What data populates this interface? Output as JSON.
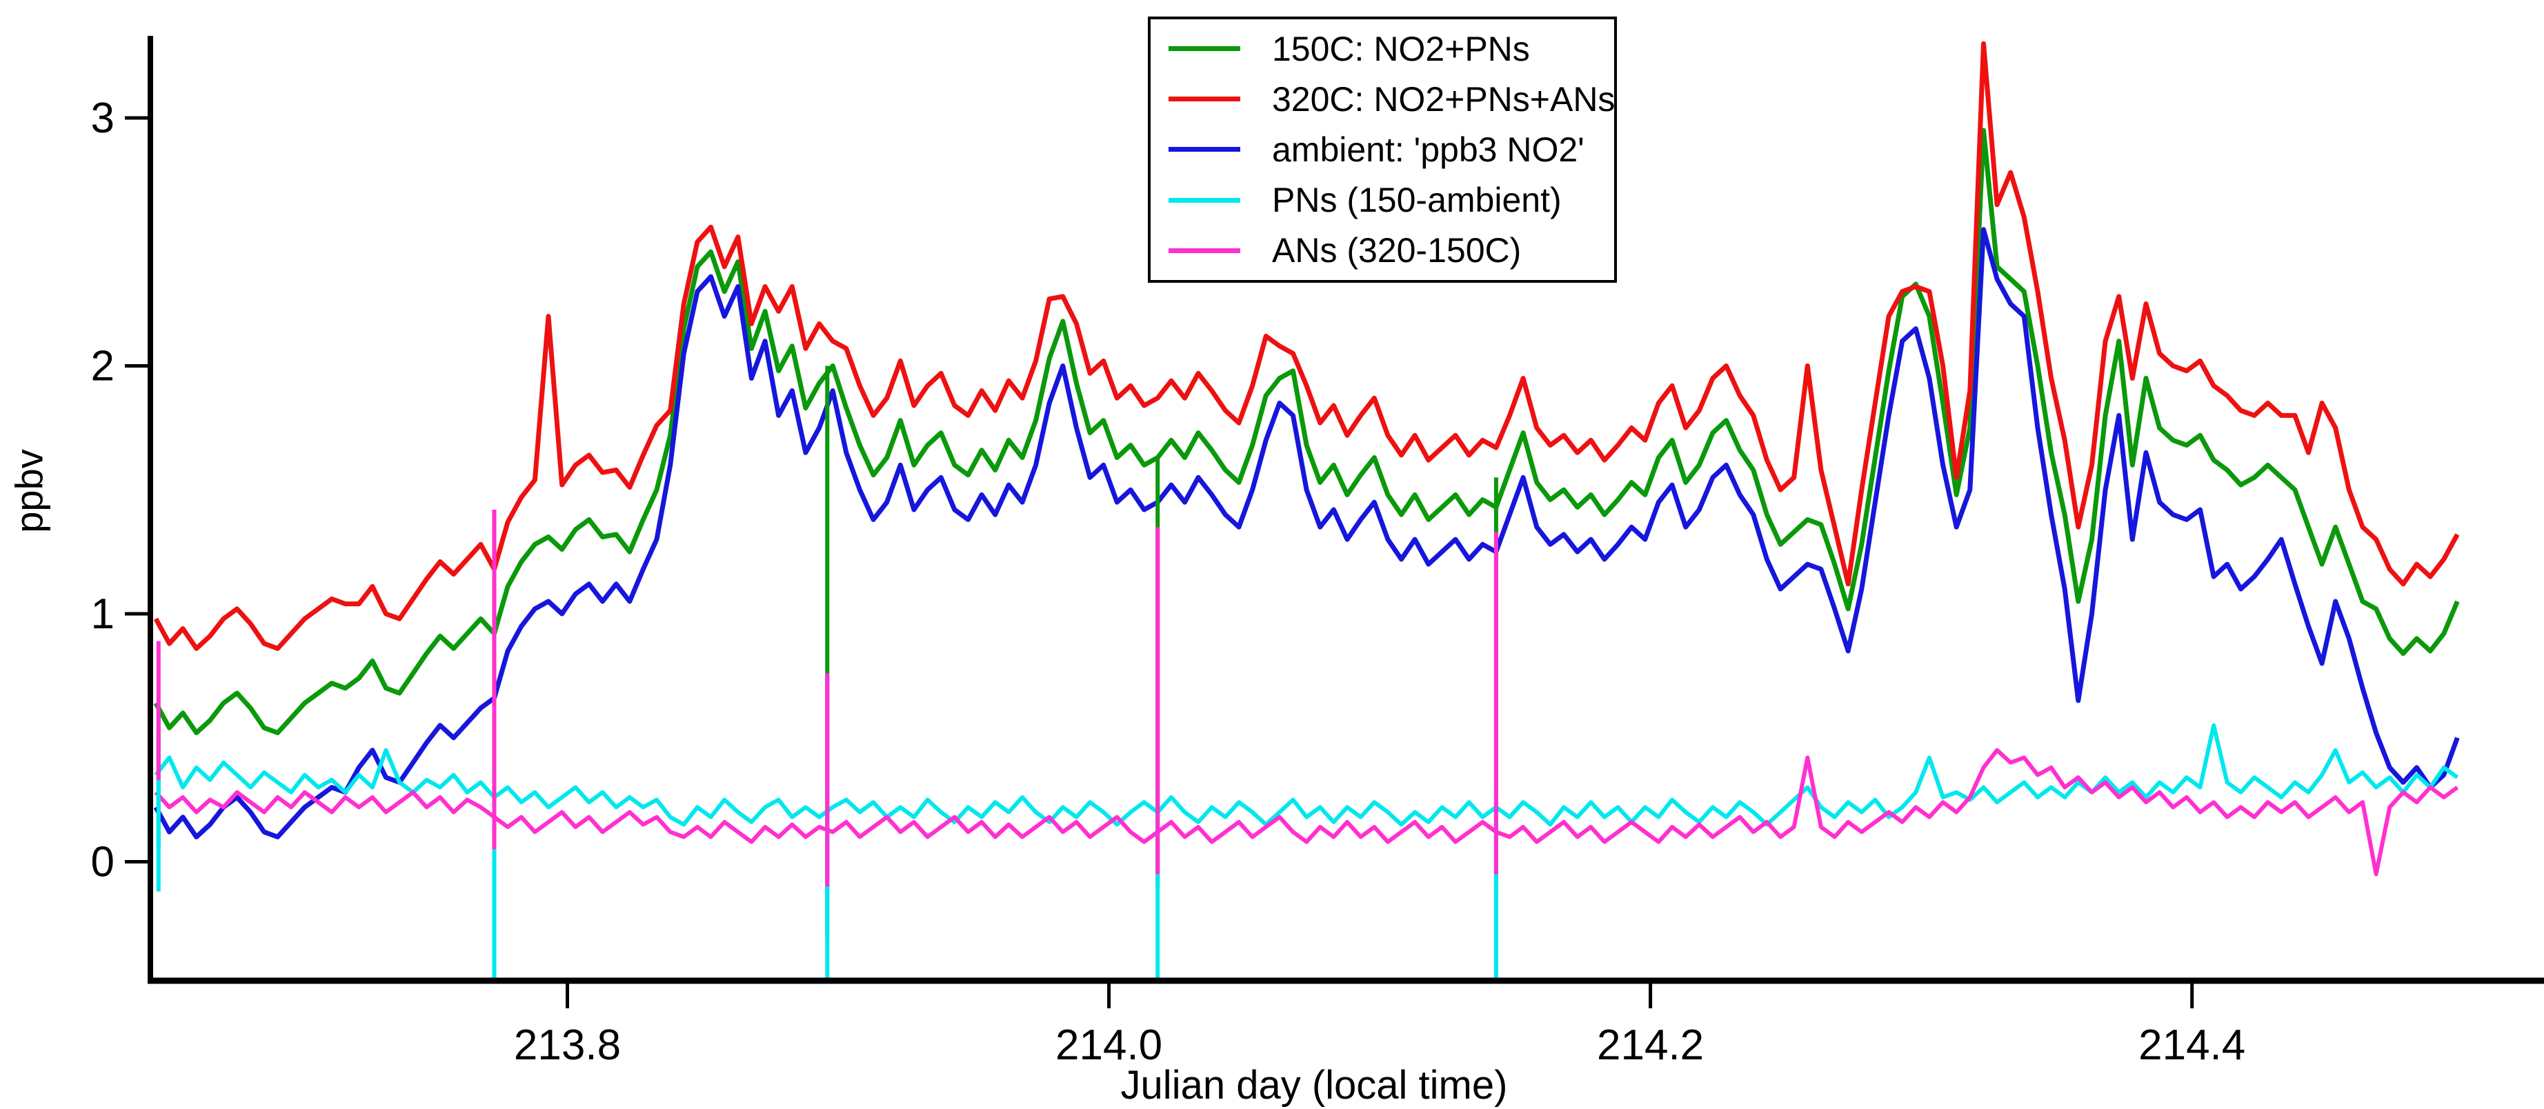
{
  "figure_type": "time-series line plot",
  "axes": {
    "xlabel": "Julian day (local time)",
    "ylabel": "ppbv",
    "xtick_labels": [
      "213.8",
      "214.0",
      "214.2",
      "214.4"
    ],
    "ytick_labels": [
      "0",
      "1",
      "2",
      "3"
    ]
  },
  "legend": {
    "entries": [
      {
        "label": "150C: NO2+PNs",
        "color": "#0a990a"
      },
      {
        "label": "320C: NO2+PNs+ANs",
        "color": "#ee1111"
      },
      {
        "label": "ambient: 'ppb3 NO2'",
        "color": "#1616dd"
      },
      {
        "label": "PNs (150-ambient)",
        "color": "#00e8ee"
      },
      {
        "label": "ANs (320-150C)",
        "color": "#ff30cf"
      }
    ]
  },
  "chart_data": {
    "type": "line",
    "title": "",
    "xlabel": "Julian day (local time)",
    "ylabel": "ppbv",
    "xlim": [
      213.646,
      214.53
    ],
    "ylim": [
      -0.48,
      3.32
    ],
    "xticks": [
      213.8,
      214.0,
      214.2,
      214.4
    ],
    "yticks": [
      0,
      1,
      2,
      3
    ],
    "grid": false,
    "legend_position": "top-center-inside",
    "x_start": 213.648,
    "x_step": 0.005,
    "series": [
      {
        "id": "c150",
        "name": "150C: NO2+PNs",
        "color": "#0a990a",
        "values": [
          0.64,
          0.54,
          0.6,
          0.52,
          0.57,
          0.64,
          0.68,
          0.62,
          0.54,
          0.52,
          0.58,
          0.64,
          0.68,
          0.72,
          0.7,
          0.74,
          0.81,
          0.7,
          0.68,
          0.76,
          0.84,
          0.91,
          0.86,
          0.92,
          0.98,
          0.92,
          1.11,
          1.21,
          1.28,
          1.31,
          1.26,
          1.34,
          1.38,
          1.31,
          1.32,
          1.25,
          1.38,
          1.5,
          1.72,
          2.15,
          2.4,
          2.46,
          2.3,
          2.42,
          2.07,
          2.22,
          1.98,
          2.08,
          1.83,
          1.93,
          2.0,
          1.83,
          1.68,
          1.56,
          1.63,
          1.78,
          1.6,
          1.68,
          1.73,
          1.6,
          1.56,
          1.66,
          1.58,
          1.7,
          1.63,
          1.78,
          2.03,
          2.18,
          1.93,
          1.73,
          1.78,
          1.63,
          1.68,
          1.6,
          1.63,
          1.7,
          1.63,
          1.73,
          1.66,
          1.58,
          1.53,
          1.68,
          1.88,
          1.95,
          1.98,
          1.68,
          1.53,
          1.6,
          1.48,
          1.56,
          1.63,
          1.48,
          1.4,
          1.48,
          1.38,
          1.43,
          1.48,
          1.4,
          1.46,
          1.43,
          1.58,
          1.73,
          1.53,
          1.46,
          1.5,
          1.43,
          1.48,
          1.4,
          1.46,
          1.53,
          1.48,
          1.63,
          1.7,
          1.53,
          1.6,
          1.73,
          1.78,
          1.66,
          1.58,
          1.4,
          1.28,
          1.33,
          1.38,
          1.36,
          1.2,
          1.02,
          1.28,
          1.63,
          1.98,
          2.28,
          2.33,
          2.2,
          1.85,
          1.48,
          1.75,
          2.95,
          2.4,
          2.35,
          2.3,
          2.0,
          1.65,
          1.4,
          1.05,
          1.3,
          1.8,
          2.1,
          1.6,
          1.95,
          1.75,
          1.7,
          1.68,
          1.72,
          1.62,
          1.58,
          1.52,
          1.55,
          1.6,
          1.55,
          1.5,
          1.35,
          1.2,
          1.35,
          1.2,
          1.05,
          1.02,
          0.9,
          0.84,
          0.9,
          0.85,
          0.92,
          1.05
        ]
      },
      {
        "id": "c320",
        "name": "320C: NO2+PNs+ANs",
        "color": "#ee1111",
        "values": [
          0.98,
          0.88,
          0.94,
          0.86,
          0.91,
          0.98,
          1.02,
          0.96,
          0.88,
          0.86,
          0.92,
          0.98,
          1.02,
          1.06,
          1.04,
          1.04,
          1.11,
          1.0,
          0.98,
          1.06,
          1.14,
          1.21,
          1.16,
          1.22,
          1.28,
          1.18,
          1.37,
          1.47,
          1.54,
          2.2,
          1.52,
          1.6,
          1.64,
          1.57,
          1.58,
          1.51,
          1.64,
          1.76,
          1.82,
          2.25,
          2.5,
          2.56,
          2.4,
          2.52,
          2.17,
          2.32,
          2.22,
          2.32,
          2.07,
          2.17,
          2.1,
          2.07,
          1.92,
          1.8,
          1.87,
          2.02,
          1.84,
          1.92,
          1.97,
          1.84,
          1.8,
          1.9,
          1.82,
          1.94,
          1.87,
          2.02,
          2.27,
          2.28,
          2.17,
          1.97,
          2.02,
          1.87,
          1.92,
          1.84,
          1.87,
          1.94,
          1.87,
          1.97,
          1.9,
          1.82,
          1.77,
          1.92,
          2.12,
          2.08,
          2.05,
          1.92,
          1.77,
          1.84,
          1.72,
          1.8,
          1.87,
          1.72,
          1.64,
          1.72,
          1.62,
          1.67,
          1.72,
          1.64,
          1.7,
          1.67,
          1.8,
          1.95,
          1.75,
          1.68,
          1.72,
          1.65,
          1.7,
          1.62,
          1.68,
          1.75,
          1.7,
          1.85,
          1.92,
          1.75,
          1.82,
          1.95,
          2.0,
          1.88,
          1.8,
          1.62,
          1.5,
          1.55,
          2.0,
          1.58,
          1.35,
          1.12,
          1.5,
          1.85,
          2.2,
          2.3,
          2.32,
          2.3,
          2.0,
          1.55,
          1.9,
          3.3,
          2.65,
          2.78,
          2.6,
          2.3,
          1.95,
          1.7,
          1.35,
          1.6,
          2.1,
          2.28,
          1.95,
          2.25,
          2.05,
          2.0,
          1.98,
          2.02,
          1.92,
          1.88,
          1.82,
          1.8,
          1.85,
          1.8,
          1.8,
          1.65,
          1.85,
          1.75,
          1.5,
          1.35,
          1.3,
          1.18,
          1.12,
          1.2,
          1.15,
          1.22,
          1.32
        ]
      },
      {
        "id": "ambient",
        "name": "ambient: 'ppb3 NO2'",
        "color": "#1616dd",
        "values": [
          0.22,
          0.12,
          0.18,
          0.1,
          0.15,
          0.22,
          0.26,
          0.2,
          0.12,
          0.1,
          0.16,
          0.22,
          0.26,
          0.3,
          0.28,
          0.38,
          0.45,
          0.34,
          0.32,
          0.4,
          0.48,
          0.55,
          0.5,
          0.56,
          0.62,
          0.66,
          0.85,
          0.95,
          1.02,
          1.05,
          1.0,
          1.08,
          1.12,
          1.05,
          1.12,
          1.05,
          1.18,
          1.3,
          1.6,
          2.05,
          2.3,
          2.36,
          2.2,
          2.32,
          1.95,
          2.1,
          1.8,
          1.9,
          1.65,
          1.75,
          1.9,
          1.65,
          1.5,
          1.38,
          1.45,
          1.6,
          1.42,
          1.5,
          1.55,
          1.42,
          1.38,
          1.48,
          1.4,
          1.52,
          1.45,
          1.6,
          1.85,
          2.0,
          1.75,
          1.55,
          1.6,
          1.45,
          1.5,
          1.42,
          1.45,
          1.52,
          1.45,
          1.55,
          1.48,
          1.4,
          1.35,
          1.5,
          1.7,
          1.85,
          1.8,
          1.5,
          1.35,
          1.42,
          1.3,
          1.38,
          1.45,
          1.3,
          1.22,
          1.3,
          1.2,
          1.25,
          1.3,
          1.22,
          1.28,
          1.25,
          1.4,
          1.55,
          1.35,
          1.28,
          1.32,
          1.25,
          1.3,
          1.22,
          1.28,
          1.35,
          1.3,
          1.45,
          1.52,
          1.35,
          1.42,
          1.55,
          1.6,
          1.48,
          1.4,
          1.22,
          1.1,
          1.15,
          1.2,
          1.18,
          1.02,
          0.85,
          1.1,
          1.45,
          1.8,
          2.1,
          2.15,
          1.95,
          1.6,
          1.35,
          1.5,
          2.55,
          2.35,
          2.25,
          2.2,
          1.75,
          1.4,
          1.1,
          0.65,
          1.0,
          1.5,
          1.8,
          1.3,
          1.65,
          1.45,
          1.4,
          1.38,
          1.42,
          1.15,
          1.2,
          1.1,
          1.15,
          1.22,
          1.3,
          1.12,
          0.95,
          0.8,
          1.05,
          0.9,
          0.7,
          0.52,
          0.38,
          0.32,
          0.38,
          0.3,
          0.35,
          0.5
        ]
      },
      {
        "id": "pns",
        "name": "PNs (150-ambient)",
        "color": "#00e8ee",
        "values": [
          0.35,
          0.42,
          0.3,
          0.38,
          0.33,
          0.4,
          0.35,
          0.3,
          0.36,
          0.32,
          0.28,
          0.35,
          0.3,
          0.33,
          0.28,
          0.35,
          0.3,
          0.45,
          0.32,
          0.28,
          0.33,
          0.3,
          0.35,
          0.28,
          0.32,
          0.26,
          0.3,
          0.24,
          0.28,
          0.22,
          0.26,
          0.3,
          0.24,
          0.28,
          0.22,
          0.26,
          0.22,
          0.25,
          0.18,
          0.15,
          0.22,
          0.18,
          0.25,
          0.2,
          0.16,
          0.22,
          0.25,
          0.18,
          0.22,
          0.18,
          0.22,
          0.25,
          0.2,
          0.24,
          0.18,
          0.22,
          0.18,
          0.25,
          0.2,
          0.16,
          0.22,
          0.18,
          0.24,
          0.2,
          0.26,
          0.2,
          0.16,
          0.22,
          0.18,
          0.24,
          0.2,
          0.15,
          0.2,
          0.24,
          0.2,
          0.26,
          0.2,
          0.16,
          0.22,
          0.18,
          0.24,
          0.2,
          0.15,
          0.2,
          0.25,
          0.18,
          0.22,
          0.16,
          0.22,
          0.18,
          0.24,
          0.2,
          0.15,
          0.2,
          0.16,
          0.22,
          0.18,
          0.24,
          0.18,
          0.22,
          0.18,
          0.24,
          0.2,
          0.15,
          0.22,
          0.18,
          0.24,
          0.18,
          0.22,
          0.16,
          0.22,
          0.18,
          0.25,
          0.2,
          0.16,
          0.22,
          0.18,
          0.24,
          0.2,
          0.15,
          0.2,
          0.25,
          0.3,
          0.22,
          0.18,
          0.24,
          0.2,
          0.25,
          0.18,
          0.22,
          0.28,
          0.42,
          0.26,
          0.28,
          0.25,
          0.3,
          0.24,
          0.28,
          0.32,
          0.26,
          0.3,
          0.26,
          0.32,
          0.28,
          0.34,
          0.28,
          0.32,
          0.26,
          0.32,
          0.28,
          0.34,
          0.3,
          0.55,
          0.32,
          0.28,
          0.34,
          0.3,
          0.26,
          0.32,
          0.28,
          0.35,
          0.45,
          0.32,
          0.36,
          0.3,
          0.34,
          0.28,
          0.35,
          0.3,
          0.38,
          0.34
        ]
      },
      {
        "id": "ans",
        "name": "ANs (320-150C)",
        "color": "#ff30cf",
        "values": [
          0.28,
          0.22,
          0.26,
          0.2,
          0.25,
          0.22,
          0.28,
          0.24,
          0.2,
          0.26,
          0.22,
          0.28,
          0.24,
          0.2,
          0.26,
          0.22,
          0.26,
          0.2,
          0.24,
          0.28,
          0.22,
          0.26,
          0.2,
          0.25,
          0.22,
          0.18,
          0.14,
          0.18,
          0.12,
          0.16,
          0.2,
          0.14,
          0.18,
          0.12,
          0.16,
          0.2,
          0.15,
          0.18,
          0.12,
          0.1,
          0.14,
          0.1,
          0.16,
          0.12,
          0.08,
          0.14,
          0.1,
          0.15,
          0.1,
          0.14,
          0.12,
          0.16,
          0.1,
          0.14,
          0.18,
          0.12,
          0.16,
          0.1,
          0.14,
          0.18,
          0.12,
          0.16,
          0.1,
          0.15,
          0.1,
          0.14,
          0.18,
          0.12,
          0.16,
          0.1,
          0.14,
          0.18,
          0.12,
          0.08,
          0.12,
          0.16,
          0.1,
          0.14,
          0.08,
          0.12,
          0.16,
          0.1,
          0.14,
          0.18,
          0.12,
          0.08,
          0.14,
          0.1,
          0.16,
          0.1,
          0.14,
          0.08,
          0.12,
          0.16,
          0.1,
          0.14,
          0.08,
          0.12,
          0.16,
          0.12,
          0.1,
          0.14,
          0.08,
          0.12,
          0.16,
          0.1,
          0.14,
          0.08,
          0.12,
          0.16,
          0.12,
          0.08,
          0.14,
          0.1,
          0.15,
          0.1,
          0.14,
          0.18,
          0.12,
          0.16,
          0.1,
          0.14,
          0.42,
          0.14,
          0.1,
          0.16,
          0.12,
          0.16,
          0.2,
          0.16,
          0.22,
          0.18,
          0.24,
          0.2,
          0.26,
          0.38,
          0.45,
          0.4,
          0.42,
          0.35,
          0.38,
          0.3,
          0.34,
          0.28,
          0.32,
          0.26,
          0.3,
          0.24,
          0.28,
          0.22,
          0.26,
          0.2,
          0.24,
          0.18,
          0.22,
          0.18,
          0.24,
          0.2,
          0.24,
          0.18,
          0.22,
          0.26,
          0.2,
          0.24,
          -0.05,
          0.22,
          0.28,
          0.24,
          0.3,
          0.26,
          0.3
        ]
      }
    ],
    "calibration_spikes": [
      {
        "x": 213.649,
        "segments": [
          {
            "series": "c150",
            "from": 0.06,
            "to": 0.62
          },
          {
            "series": "pns",
            "from": -0.12,
            "to": 0.53
          },
          {
            "series": "ans",
            "from": 0.33,
            "to": 0.89
          }
        ]
      },
      {
        "x": 213.773,
        "segments": [
          {
            "series": "c150",
            "from": -0.35,
            "to": 1.3
          },
          {
            "series": "pns",
            "from": -0.48,
            "to": 0.35
          },
          {
            "series": "ans",
            "from": 0.05,
            "to": 1.42
          }
        ]
      },
      {
        "x": 213.896,
        "segments": [
          {
            "series": "c150",
            "from": -0.3,
            "to": 2.0
          },
          {
            "series": "pns",
            "from": -0.48,
            "to": 0.3
          },
          {
            "series": "ans",
            "from": -0.1,
            "to": 0.76
          }
        ]
      },
      {
        "x": 214.018,
        "segments": [
          {
            "series": "c150",
            "from": -0.1,
            "to": 1.63
          },
          {
            "series": "pns",
            "from": -0.48,
            "to": 0.3
          },
          {
            "series": "ans",
            "from": -0.05,
            "to": 1.35
          }
        ]
      },
      {
        "x": 214.143,
        "segments": [
          {
            "series": "c150",
            "from": -0.12,
            "to": 1.55
          },
          {
            "series": "pns",
            "from": -0.48,
            "to": 0.3
          },
          {
            "series": "ans",
            "from": -0.05,
            "to": 1.33
          }
        ]
      }
    ]
  }
}
